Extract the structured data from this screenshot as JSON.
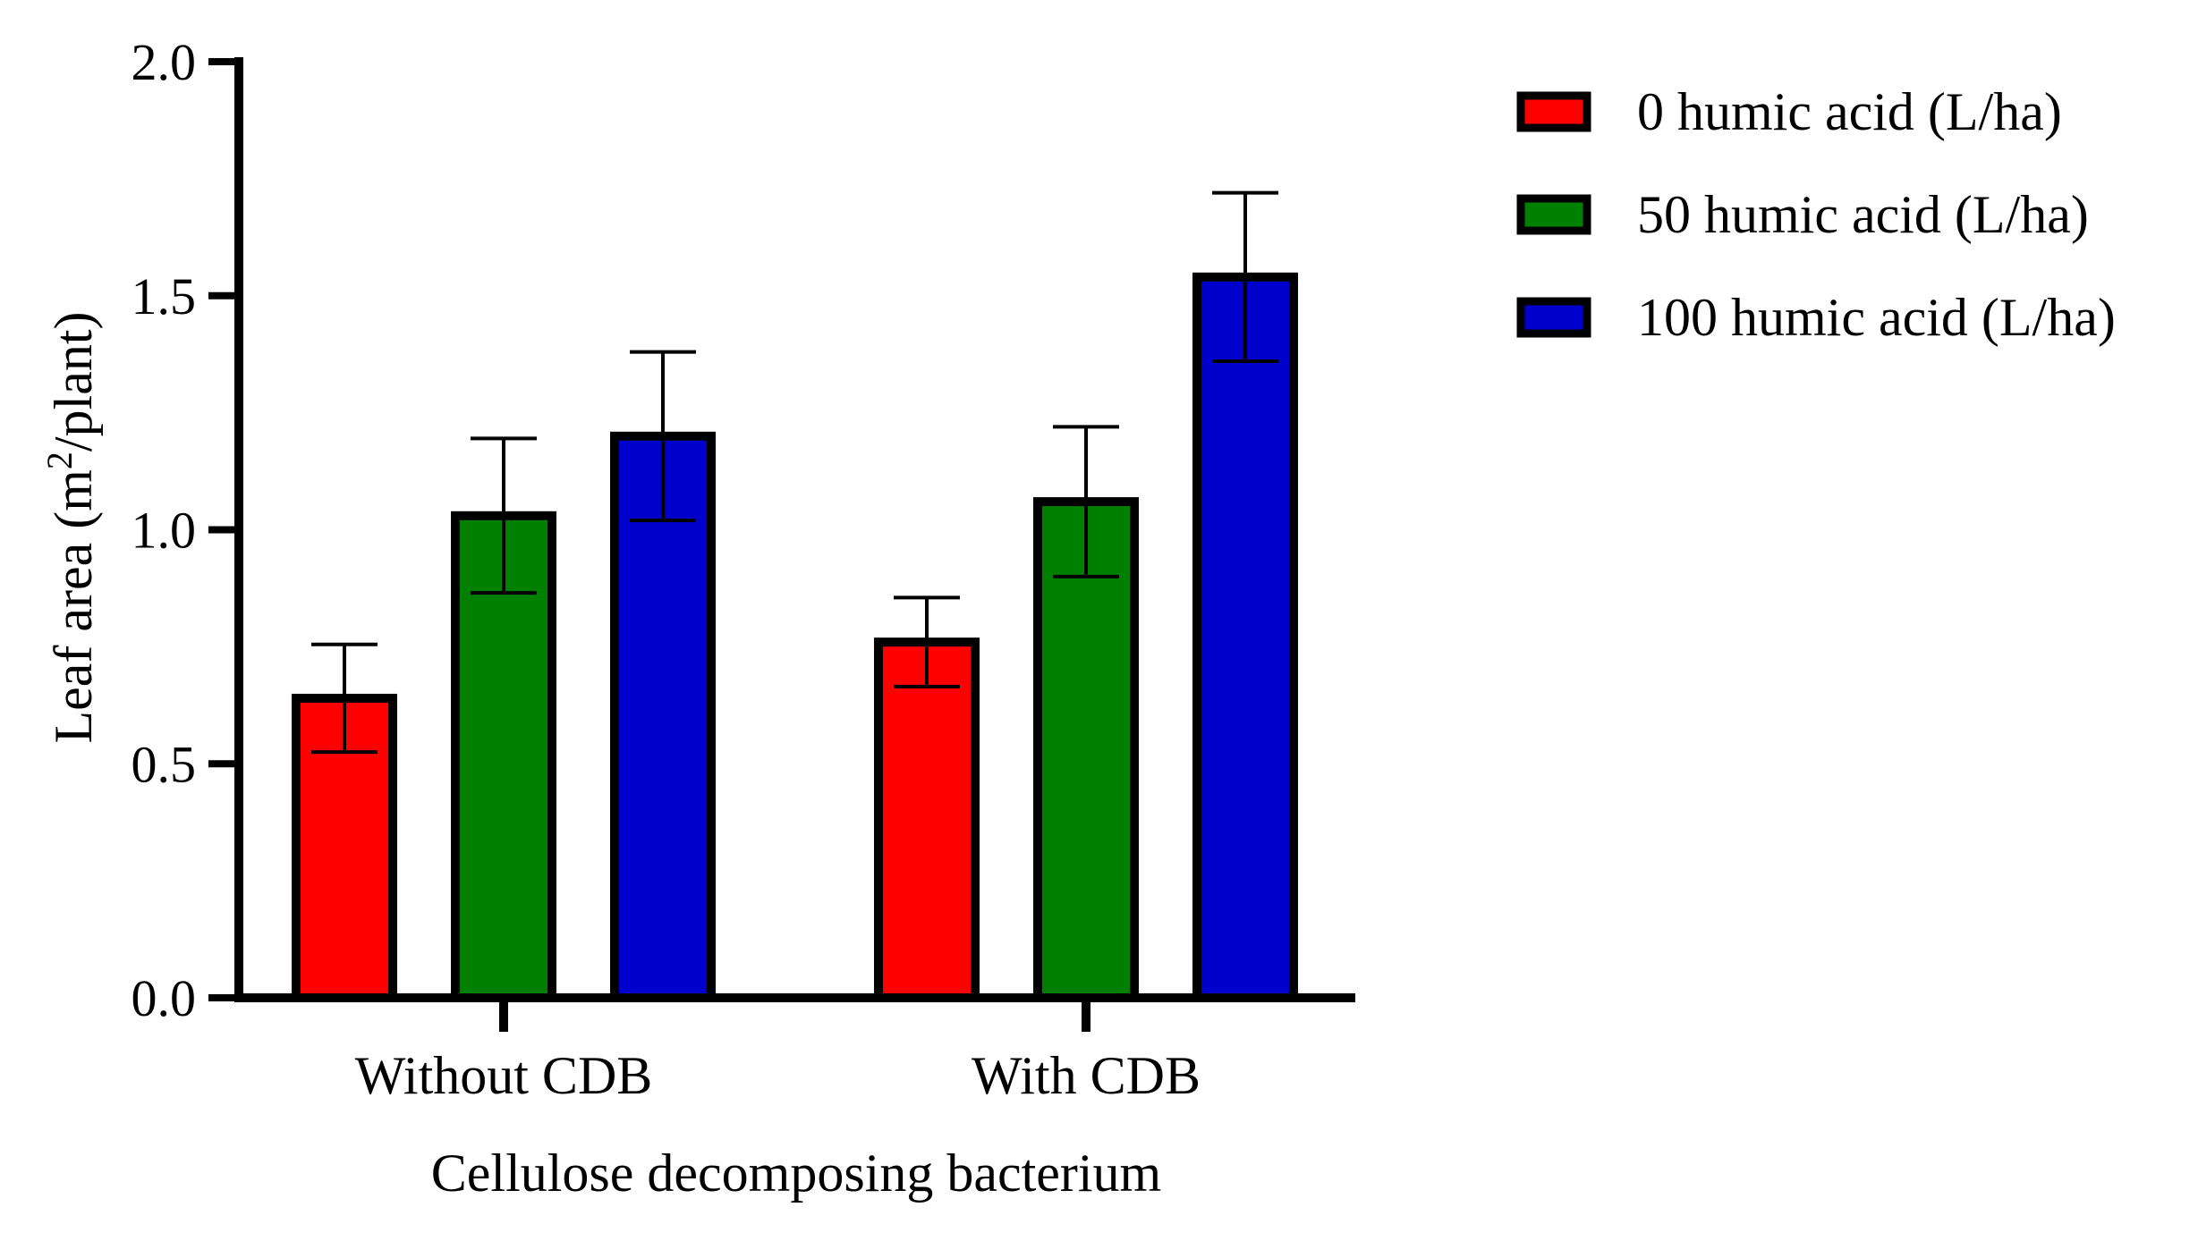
{
  "chart_data": {
    "type": "bar",
    "title": "",
    "xlabel": "Cellulose decomposing bacterium",
    "ylabel": {
      "prefix": "Leaf area (m",
      "superscript": "2",
      "suffix": "/plant)"
    },
    "ylim": [
      0,
      2.0
    ],
    "yticks": [
      "0.0",
      "0.5",
      "1.0",
      "1.5",
      "2.0"
    ],
    "categories": [
      "Without CDB",
      "With CDB"
    ],
    "series": [
      {
        "name": "0 humic acid (L/ha)",
        "color": "#ff0000",
        "values": [
          0.64,
          0.76
        ],
        "errors": [
          0.115,
          0.095
        ]
      },
      {
        "name": "50 humic acid (L/ha)",
        "color": "#008000",
        "values": [
          1.03,
          1.06
        ],
        "errors": [
          0.165,
          0.16
        ]
      },
      {
        "name": "100 humic acid (L/ha)",
        "color": "#0000cc",
        "values": [
          1.2,
          1.54
        ],
        "errors": [
          0.18,
          0.18
        ]
      }
    ],
    "grid": false,
    "legend_position": "top-right"
  }
}
